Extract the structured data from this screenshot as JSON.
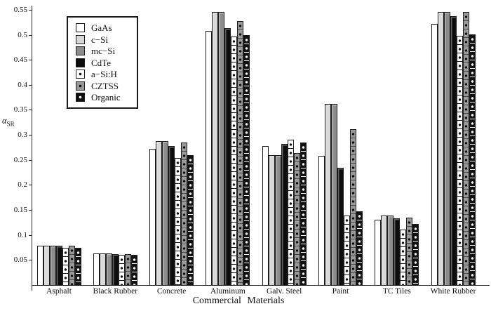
{
  "figure": {
    "xlabel": "Commercial Materials",
    "ylabel_symbol": "α",
    "ylabel_subscript": "SR"
  },
  "chart_data": {
    "type": "bar",
    "title": "",
    "xlabel": "Commercial Materials",
    "ylabel": "α_SR",
    "ylim": [
      0,
      0.56
    ],
    "grid": false,
    "legend_position": "upper-left",
    "yticks": [
      0.05,
      0.1,
      0.15,
      0.2,
      0.25,
      0.3,
      0.35,
      0.4,
      0.45,
      0.5,
      0.55
    ],
    "ytick_labels": [
      "0.05",
      "0.1",
      "0.15",
      "0.2",
      "0.25",
      "0.3",
      "0.35",
      "0.4",
      "0.45",
      "0.5",
      "0.55"
    ],
    "categories": [
      "Asphalt",
      "Black Rubber",
      "Concrete",
      "Aluminum",
      "Galv. Steel",
      "Paint",
      "TC Tiles",
      "White Rubber"
    ],
    "series": [
      {
        "name": "GaAs",
        "display": "GaAs",
        "fill": "#ffffff",
        "pattern": "solid",
        "values": [
          0.078,
          0.063,
          0.272,
          0.508,
          0.278,
          0.258,
          0.13,
          0.522
        ]
      },
      {
        "name": "c-Si",
        "display": "c−Si",
        "fill": "#d8d8d8",
        "pattern": "solid",
        "values": [
          0.079,
          0.063,
          0.287,
          0.545,
          0.26,
          0.362,
          0.139,
          0.545
        ]
      },
      {
        "name": "mc-Si",
        "display": "mc−Si",
        "fill": "#8c8c8c",
        "pattern": "solid",
        "values": [
          0.079,
          0.063,
          0.288,
          0.545,
          0.259,
          0.362,
          0.139,
          0.546
        ]
      },
      {
        "name": "CdTe",
        "display": "CdTe",
        "fill": "#0d0d0d",
        "pattern": "solid",
        "values": [
          0.078,
          0.062,
          0.278,
          0.513,
          0.282,
          0.234,
          0.133,
          0.537
        ]
      },
      {
        "name": "a-Si:H",
        "display": "a−Si:H",
        "fill": "#ffffff",
        "pattern": "dots",
        "dot_color": "#111111",
        "line_color": "#111111",
        "values": [
          0.075,
          0.06,
          0.254,
          0.496,
          0.29,
          0.139,
          0.111,
          0.498
        ]
      },
      {
        "name": "CZTSS",
        "display": "CZTSS",
        "fill": "#999999",
        "pattern": "dots",
        "dot_color": "#0d0d0d",
        "line_color": "#4a4a4a",
        "values": [
          0.078,
          0.062,
          0.285,
          0.528,
          0.264,
          0.311,
          0.135,
          0.546
        ]
      },
      {
        "name": "Organic",
        "display": "Organic",
        "fill": "#111111",
        "pattern": "dots",
        "dot_color": "#ffffff",
        "line_color": "#ffffff",
        "values": [
          0.075,
          0.06,
          0.26,
          0.499,
          0.285,
          0.147,
          0.122,
          0.501
        ]
      }
    ]
  }
}
